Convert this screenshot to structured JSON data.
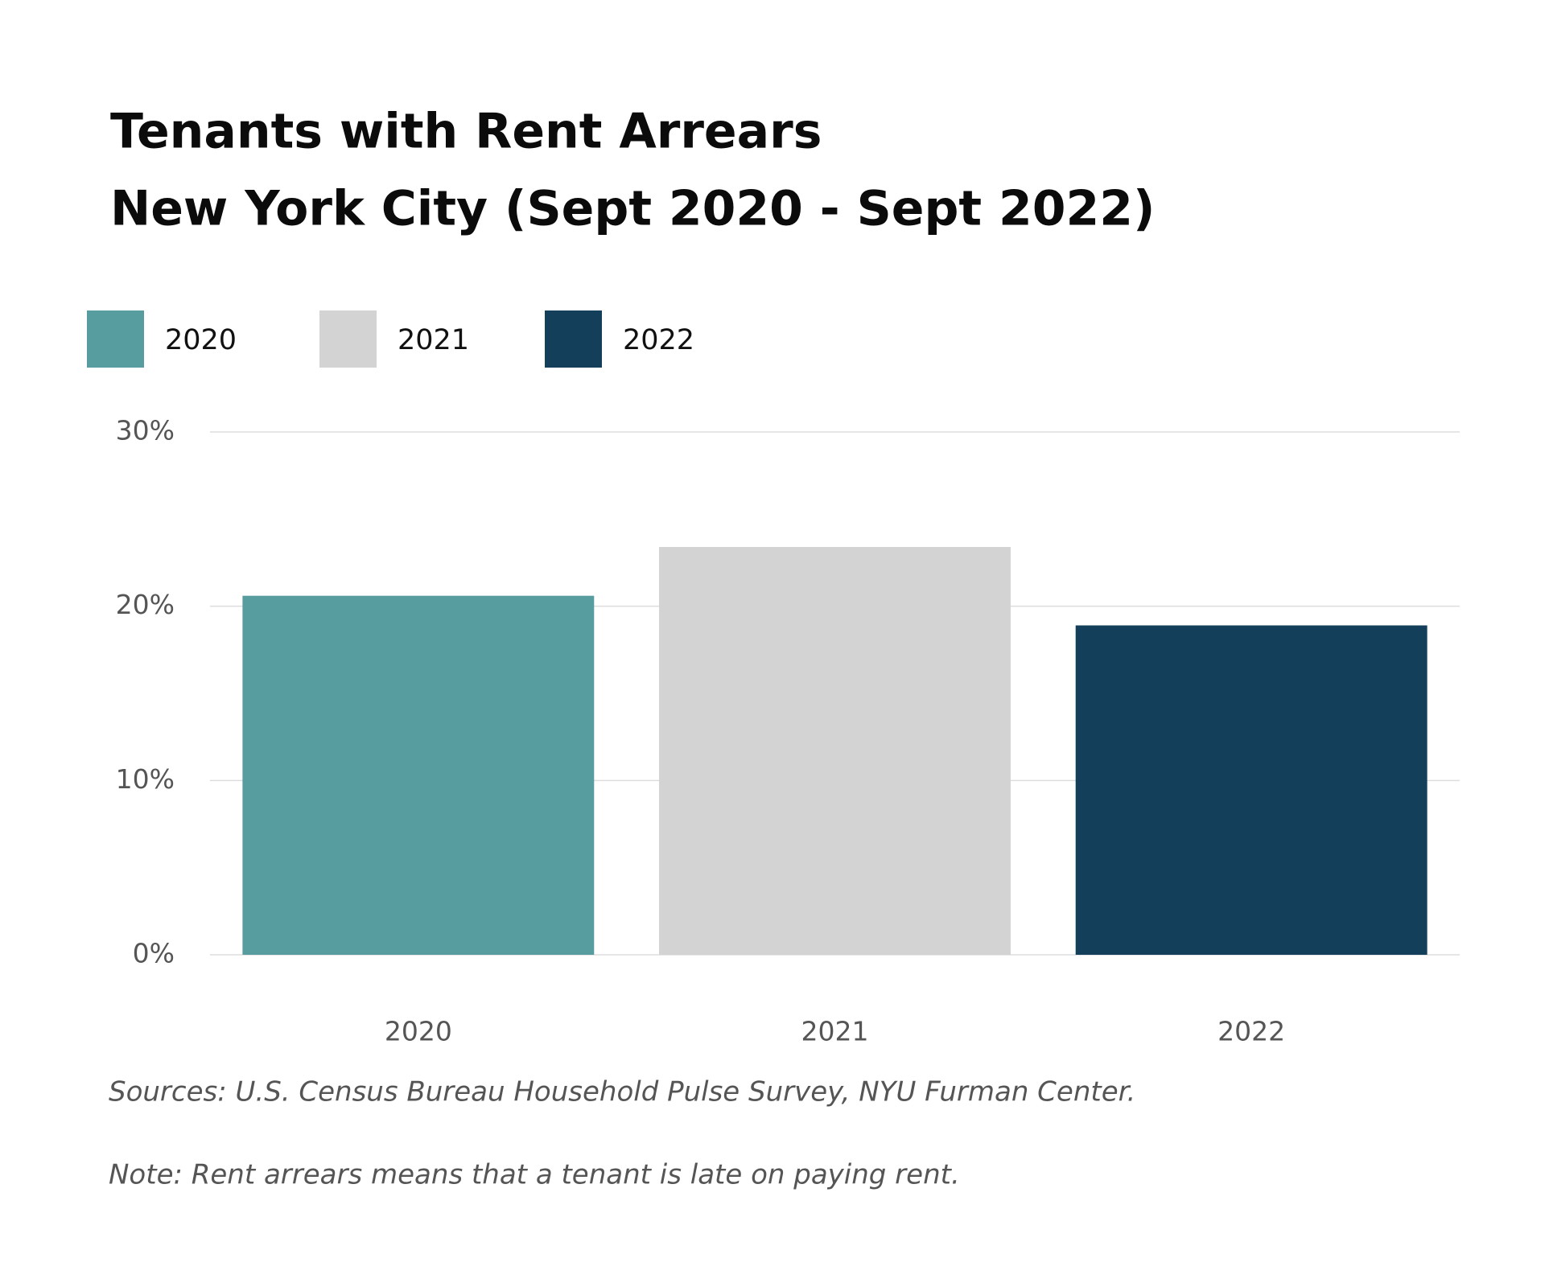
{
  "chart_data": {
    "type": "bar",
    "title": "Tenants with Rent Arrears",
    "subtitle": "New York City (Sept 2020 - Sept 2022)",
    "categories": [
      "2020",
      "2021",
      "2022"
    ],
    "values": [
      20.6,
      23.4,
      18.9
    ],
    "colors": [
      "#579c9f",
      "#d3d3d3",
      "#143f5a"
    ],
    "ylim": [
      0,
      30
    ],
    "yticks": [
      {
        "value": 0,
        "label": "0%"
      },
      {
        "value": 10,
        "label": "10%"
      },
      {
        "value": 20,
        "label": "20%"
      },
      {
        "value": 30,
        "label": "30%"
      }
    ],
    "grid": true,
    "legend": "top-left",
    "sources": "Sources: U.S. Census Bureau Household Pulse Survey, NYU Furman Center.",
    "note": "Note: Rent arrears means that a tenant is late on paying rent."
  }
}
